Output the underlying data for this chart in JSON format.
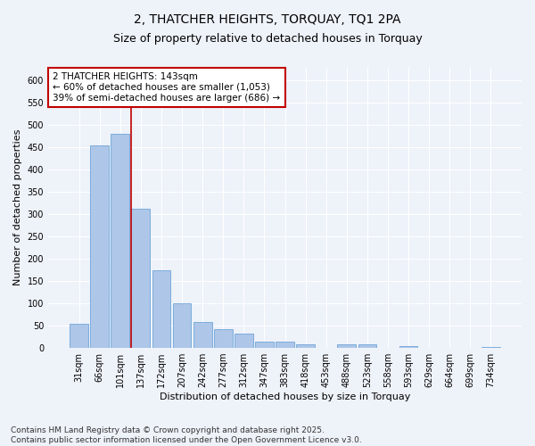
{
  "title": "2, THATCHER HEIGHTS, TORQUAY, TQ1 2PA",
  "subtitle": "Size of property relative to detached houses in Torquay",
  "xlabel": "Distribution of detached houses by size in Torquay",
  "ylabel": "Number of detached properties",
  "categories": [
    "31sqm",
    "66sqm",
    "101sqm",
    "137sqm",
    "172sqm",
    "207sqm",
    "242sqm",
    "277sqm",
    "312sqm",
    "347sqm",
    "383sqm",
    "418sqm",
    "453sqm",
    "488sqm",
    "523sqm",
    "558sqm",
    "593sqm",
    "629sqm",
    "664sqm",
    "699sqm",
    "734sqm"
  ],
  "values": [
    55,
    455,
    480,
    312,
    175,
    100,
    58,
    42,
    32,
    15,
    15,
    8,
    0,
    8,
    8,
    0,
    5,
    0,
    0,
    0,
    2
  ],
  "bar_color": "#aec6e8",
  "bar_edge_color": "#5b9bd5",
  "vline_x_index": 3,
  "vline_color": "#c00000",
  "annotation_text": "2 THATCHER HEIGHTS: 143sqm\n← 60% of detached houses are smaller (1,053)\n39% of semi-detached houses are larger (686) →",
  "annotation_box_color": "#ffffff",
  "annotation_box_edge_color": "#c00000",
  "background_color": "#eef2f9",
  "grid_color": "#ffffff",
  "ylim": [
    0,
    630
  ],
  "yticks": [
    0,
    50,
    100,
    150,
    200,
    250,
    300,
    350,
    400,
    450,
    500,
    550,
    600
  ],
  "footnote": "Contains HM Land Registry data © Crown copyright and database right 2025.\nContains public sector information licensed under the Open Government Licence v3.0.",
  "title_fontsize": 10,
  "subtitle_fontsize": 9,
  "axis_label_fontsize": 8,
  "tick_fontsize": 7,
  "annotation_fontsize": 7.5,
  "footnote_fontsize": 6.5
}
